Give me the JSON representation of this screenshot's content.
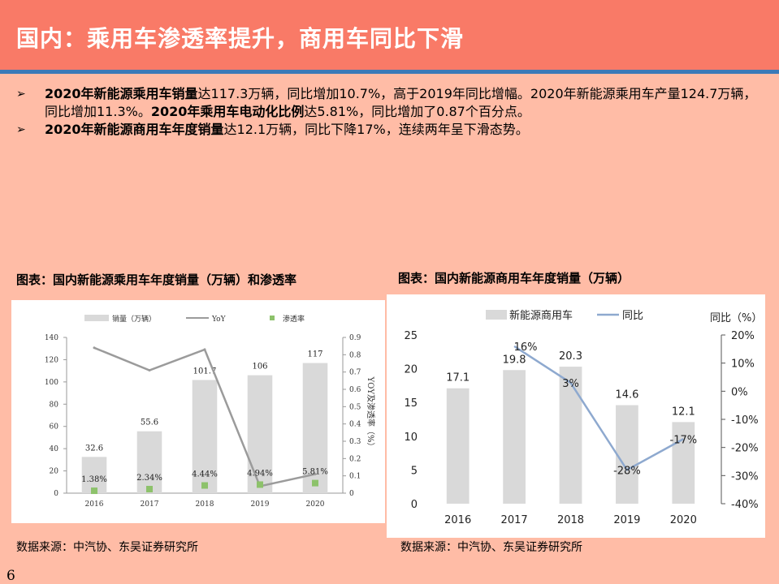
{
  "header": {
    "title": "国内：乘用车渗透率提升，商用车同比下滑"
  },
  "bullets": [
    {
      "bold1": "2020年新能源乘用车销量",
      "text1": "达117.3万辆，同比增加10.7%，高于2019年同比增幅。2020年新能源乘用车产量124.7万辆，同比增加11.3%。",
      "bold2": "2020年乘用车电动化比例",
      "text2": "达5.81%，同比增加了0.87个百分点。"
    },
    {
      "bold1": "2020年新能源商用车年度销量",
      "text1": "达12.1万辆，同比下降17%，连续两年呈下滑态势。"
    }
  ],
  "bullet_marker": "➢",
  "left_caption": "图表：国内新能源乘用车年度销量（万辆）和渗透率",
  "right_caption": "图表：国内新能源商用车年度销量（万辆）",
  "left_source": "数据来源：中汽协、东吴证券研究所",
  "right_source": "数据来源：中汽协、东吴证券研究所",
  "page_number": "6",
  "chart_data": [
    {
      "type": "bar",
      "categories": [
        "2016",
        "2017",
        "2018",
        "2019",
        "2020"
      ],
      "series": [
        {
          "name": "销量（万辆）",
          "kind": "bar",
          "axis": "left",
          "values": [
            32.6,
            55.6,
            101.7,
            106,
            117
          ],
          "labels": [
            "32.6",
            "55.6",
            "101.7",
            "106",
            "117"
          ],
          "color": "#d9d9d9"
        },
        {
          "name": "YoY",
          "kind": "line",
          "axis": "right",
          "values": [
            0.84,
            0.71,
            0.83,
            0.04,
            0.11
          ],
          "color": "#9b9b9b"
        },
        {
          "name": "渗透率",
          "kind": "scatter",
          "axis": "right",
          "values": [
            0.0138,
            0.0234,
            0.0444,
            0.0494,
            0.0581
          ],
          "labels": [
            "1.38%",
            "2.34%",
            "4.44%",
            "4.94%",
            "5.81%"
          ],
          "color": "#8dc26b"
        }
      ],
      "ylabel": "",
      "y2label": "YOY及渗透率（%）",
      "ylim": [
        0,
        140
      ],
      "yticks": [
        "0",
        "20",
        "40",
        "60",
        "80",
        "100",
        "120",
        "140"
      ],
      "y2lim": [
        0,
        0.9
      ],
      "y2ticks": [
        "0",
        "0.1",
        "0.2",
        "0.3",
        "0.4",
        "0.5",
        "0.6",
        "0.7",
        "0.8",
        "0.9"
      ],
      "legend": "top",
      "grid": false
    },
    {
      "type": "bar",
      "categories": [
        "2016",
        "2017",
        "2018",
        "2019",
        "2020"
      ],
      "series": [
        {
          "name": "新能源商用车",
          "kind": "bar",
          "axis": "left",
          "values": [
            17.1,
            19.8,
            20.3,
            14.6,
            12.1
          ],
          "labels": [
            "17.1",
            "19.8",
            "20.3",
            "14.6",
            "12.1"
          ],
          "color": "#d9d9d9"
        },
        {
          "name": "同比",
          "kind": "line",
          "axis": "right",
          "values": [
            null,
            16,
            3,
            -28,
            -17
          ],
          "labels": [
            "",
            "16%",
            "3%",
            "-28%",
            "-17%"
          ],
          "color": "#8ea9cf"
        }
      ],
      "y2label": "同比（%）",
      "ylim": [
        0,
        25
      ],
      "yticks": [
        "0",
        "5",
        "10",
        "15",
        "20",
        "25"
      ],
      "y2lim": [
        -40,
        20
      ],
      "y2ticks": [
        "-40%",
        "-30%",
        "-20%",
        "-10%",
        "0%",
        "10%",
        "20%"
      ],
      "legend": "top",
      "grid": false
    }
  ]
}
